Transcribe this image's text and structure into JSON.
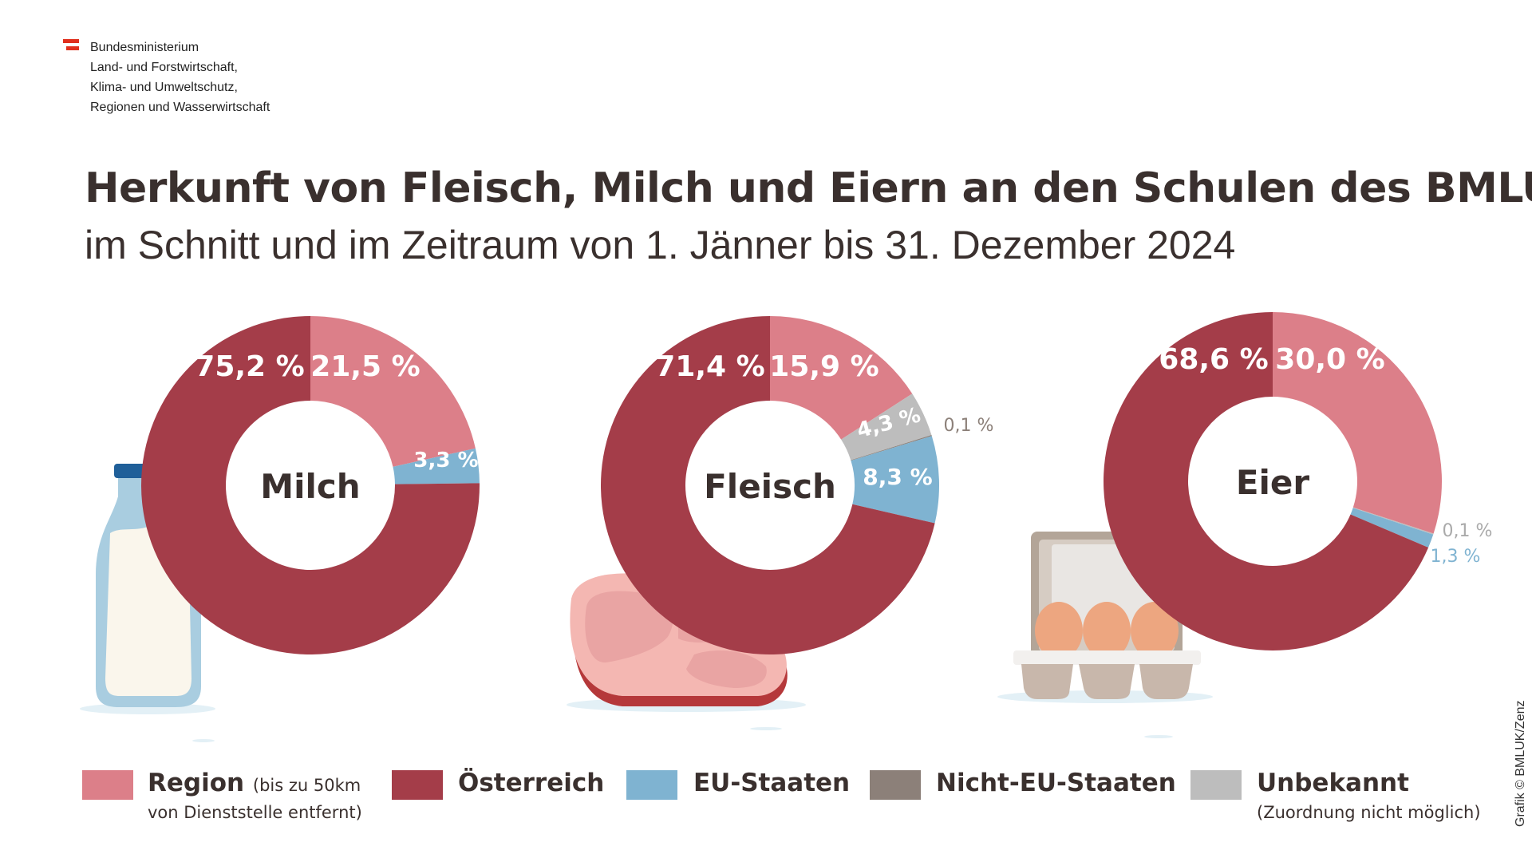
{
  "header": {
    "logo_lines": [
      "Bundesministerium",
      "Land- und Forstwirtschaft,",
      "Klima- und Umweltschutz,",
      "Regionen und Wasserwirtschaft"
    ],
    "flag_color": "#e0301e"
  },
  "chart_data": {
    "type": "pie",
    "title": "Herkunft von Fleisch, Milch und Eiern an den Schulen des BMLUK",
    "subtitle": "im Schnitt und im Zeitraum von 1. Jänner bis 31. Dezember 2024",
    "style": "donut",
    "categories": [
      "Region",
      "Österreich",
      "EU-Staaten",
      "Nicht-EU-Staaten",
      "Unbekannt"
    ],
    "colors": {
      "Region": "#dc7f89",
      "Österreich": "#a43d49",
      "EU-Staaten": "#7fb3d1",
      "Nicht-EU-Staaten": "#8c8079",
      "Unbekannt": "#bdbdbd"
    },
    "charts": [
      {
        "name": "Milch",
        "slices": [
          {
            "category": "Region",
            "value": 21.5,
            "label": "21,5 %"
          },
          {
            "category": "EU-Staaten",
            "value": 3.3,
            "label": "3,3 %"
          },
          {
            "category": "Österreich",
            "value": 75.2,
            "label": "75,2 %"
          }
        ]
      },
      {
        "name": "Fleisch",
        "slices": [
          {
            "category": "Region",
            "value": 15.9,
            "label": "15,9 %"
          },
          {
            "category": "Unbekannt",
            "value": 4.3,
            "label": "4,3 %"
          },
          {
            "category": "Nicht-EU-Staaten",
            "value": 0.1,
            "label": "0,1 %"
          },
          {
            "category": "EU-Staaten",
            "value": 8.3,
            "label": "8,3 %"
          },
          {
            "category": "Österreich",
            "value": 71.4,
            "label": "71,4 %"
          }
        ]
      },
      {
        "name": "Eier",
        "slices": [
          {
            "category": "Region",
            "value": 30.0,
            "label": "30,0 %"
          },
          {
            "category": "Unbekannt",
            "value": 0.1,
            "label": "0,1 %"
          },
          {
            "category": "EU-Staaten",
            "value": 1.3,
            "label": "1,3 %"
          },
          {
            "category": "Österreich",
            "value": 68.6,
            "label": "68,6 %"
          }
        ]
      }
    ],
    "legend_placement": "bottom"
  },
  "legend": [
    {
      "label": "Region",
      "small": "(bis zu 50km",
      "sub": "von Dienststelle entfernt)"
    },
    {
      "label": "Österreich"
    },
    {
      "label": "EU-Staaten"
    },
    {
      "label": "Nicht-EU-Staaten"
    },
    {
      "label": "Unbekannt",
      "sub": "(Zuordnung nicht möglich)"
    }
  ],
  "credit": "Grafik © BMLUK/Zenz"
}
